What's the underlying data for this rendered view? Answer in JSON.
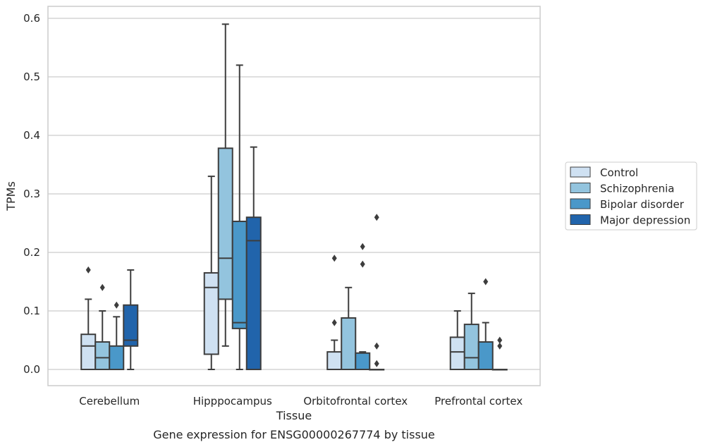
{
  "chart_data": {
    "type": "box",
    "title": "",
    "caption": "Gene expression for ENSG00000267774 by tissue",
    "xlabel": "Tissue",
    "ylabel": "TPMs",
    "ylim": [
      -0.03,
      0.62
    ],
    "yticks": [
      "0.0",
      "0.1",
      "0.2",
      "0.3",
      "0.4",
      "0.5",
      "0.6"
    ],
    "ytick_values": [
      0.0,
      0.1,
      0.2,
      0.3,
      0.4,
      0.5,
      0.6
    ],
    "grid": true,
    "legend_position": "right",
    "categories": [
      "Cerebellum",
      "Hipppocampus",
      "Orbitofrontal cortex",
      "Prefrontal cortex"
    ],
    "series": [
      {
        "name": "Control",
        "color": "#cfe1f2",
        "boxes": [
          {
            "q1": 0.0,
            "median": 0.04,
            "q3": 0.06,
            "whisker_low": 0.0,
            "whisker_high": 0.12,
            "outliers": [
              0.17
            ]
          },
          {
            "q1": 0.026,
            "median": 0.14,
            "q3": 0.165,
            "whisker_low": 0.0,
            "whisker_high": 0.33,
            "outliers": []
          },
          {
            "q1": 0.0,
            "median": 0.0,
            "q3": 0.03,
            "whisker_low": 0.0,
            "whisker_high": 0.05,
            "outliers": [
              0.08,
              0.19
            ]
          },
          {
            "q1": 0.0,
            "median": 0.03,
            "q3": 0.055,
            "whisker_low": 0.0,
            "whisker_high": 0.1,
            "outliers": []
          }
        ]
      },
      {
        "name": "Schizophrenia",
        "color": "#93c4de",
        "boxes": [
          {
            "q1": 0.0,
            "median": 0.02,
            "q3": 0.047,
            "whisker_low": 0.0,
            "whisker_high": 0.1,
            "outliers": [
              0.14
            ]
          },
          {
            "q1": 0.12,
            "median": 0.19,
            "q3": 0.378,
            "whisker_low": 0.04,
            "whisker_high": 0.59,
            "outliers": []
          },
          {
            "q1": 0.0,
            "median": 0.0,
            "q3": 0.088,
            "whisker_low": 0.0,
            "whisker_high": 0.14,
            "outliers": []
          },
          {
            "q1": 0.0,
            "median": 0.02,
            "q3": 0.077,
            "whisker_low": 0.0,
            "whisker_high": 0.13,
            "outliers": []
          }
        ]
      },
      {
        "name": "Bipolar disorder",
        "color": "#4a98c9",
        "boxes": [
          {
            "q1": 0.0,
            "median": 0.0,
            "q3": 0.04,
            "whisker_low": 0.0,
            "whisker_high": 0.09,
            "outliers": [
              0.11
            ]
          },
          {
            "q1": 0.07,
            "median": 0.08,
            "q3": 0.253,
            "whisker_low": 0.0,
            "whisker_high": 0.52,
            "outliers": []
          },
          {
            "q1": 0.0,
            "median": 0.0,
            "q3": 0.028,
            "whisker_low": 0.0,
            "whisker_high": 0.03,
            "outliers": [
              0.18,
              0.21
            ]
          },
          {
            "q1": 0.0,
            "median": 0.0,
            "q3": 0.047,
            "whisker_low": 0.0,
            "whisker_high": 0.08,
            "outliers": [
              0.15
            ]
          }
        ]
      },
      {
        "name": "Major depression",
        "color": "#2164ab",
        "boxes": [
          {
            "q1": 0.04,
            "median": 0.05,
            "q3": 0.11,
            "whisker_low": 0.0,
            "whisker_high": 0.17,
            "outliers": []
          },
          {
            "q1": 0.0,
            "median": 0.22,
            "q3": 0.26,
            "whisker_low": 0.0,
            "whisker_high": 0.38,
            "outliers": []
          },
          {
            "q1": 0.0,
            "median": 0.0,
            "q3": 0.0,
            "whisker_low": 0.0,
            "whisker_high": 0.0,
            "outliers": [
              0.01,
              0.04,
              0.26
            ]
          },
          {
            "q1": 0.0,
            "median": 0.0,
            "q3": 0.0,
            "whisker_low": 0.0,
            "whisker_high": 0.0,
            "outliers": [
              0.04,
              0.05
            ]
          }
        ]
      }
    ]
  }
}
